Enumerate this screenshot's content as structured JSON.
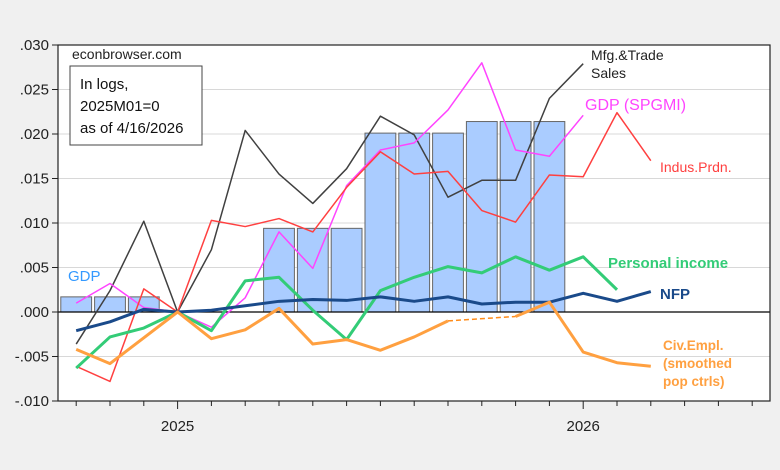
{
  "chart_data": {
    "type": "line",
    "title": "",
    "xlabel": "",
    "ylabel": "",
    "ylim": [
      -0.01,
      0.03
    ],
    "yticks": [
      ".030",
      ".025",
      ".020",
      ".015",
      ".010",
      ".005",
      ".000",
      "-.005",
      "-.010"
    ],
    "ytick_values": [
      0.03,
      0.025,
      0.02,
      0.015,
      0.01,
      0.005,
      0.0,
      -0.005,
      -0.01
    ],
    "grid": true,
    "x": [
      "2024M10",
      "2024M11",
      "2024M12",
      "2025M01",
      "2025M02",
      "2025M03",
      "2025M04",
      "2025M05",
      "2025M06",
      "2025M07",
      "2025M08",
      "2025M09",
      "2025M10",
      "2025M11",
      "2025M12",
      "2026M01",
      "2026M02",
      "2026M03"
    ],
    "xtick_labels": [
      {
        "label": "2025",
        "month": "2025M01"
      },
      {
        "label": "2026",
        "month": "2026M01"
      }
    ],
    "watermark": "econbrowser.com",
    "note": [
      "In logs,",
      "2025M01=0",
      "as of 4/16/2026"
    ],
    "bars": {
      "name": "GDP",
      "color": "#aaccff",
      "label_color": "#3399ff",
      "values": [
        0.0017,
        0.0017,
        0.0017,
        0,
        0,
        0,
        0.0094,
        0.0094,
        0.0094,
        0.0201,
        0.0201,
        0.0201,
        0.0214,
        0.0214,
        0.0214,
        null,
        null,
        null
      ]
    },
    "series": [
      {
        "name": "Mfg.&Trade Sales",
        "label_lines": [
          "Mfg.&Trade",
          "Sales"
        ],
        "color": "#404040",
        "width": 1.5,
        "values": [
          -0.0036,
          0.0024,
          0.0102,
          0,
          0.007,
          0.0204,
          0.0155,
          0.0122,
          0.0161,
          0.022,
          0.0199,
          0.0129,
          0.0148,
          0.0148,
          0.024,
          0.0279,
          null,
          null
        ]
      },
      {
        "name": "GDP (SPGMI)",
        "label_lines": [
          "GDP (SPGMI)"
        ],
        "color": "#ff44ff",
        "width": 1.5,
        "values": [
          0.001,
          0.0032,
          0.0005,
          0,
          -0.0017,
          0.0016,
          0.009,
          0.0049,
          0.0142,
          0.0182,
          0.019,
          0.0227,
          0.028,
          0.0182,
          0.0175,
          0.0221,
          null,
          null
        ]
      },
      {
        "name": "Indus.Prdn.",
        "label_lines": [
          "Indus.Prdn."
        ],
        "color": "#ff4040",
        "width": 1.5,
        "values": [
          -0.0061,
          -0.0078,
          0.0026,
          0,
          0.0103,
          0.0096,
          0.0105,
          0.009,
          0.014,
          0.018,
          0.0155,
          0.0158,
          0.0114,
          0.0101,
          0.0154,
          0.0152,
          0.0224,
          0.017
        ]
      },
      {
        "name": "Personal income",
        "label_lines": [
          "Personal income"
        ],
        "color": "#33cc77",
        "width": 3,
        "values": [
          -0.0063,
          -0.0028,
          -0.0018,
          0,
          -0.0021,
          0.0035,
          0.0039,
          0.0002,
          -0.0031,
          0.0024,
          0.0039,
          0.0051,
          0.0044,
          0.0062,
          0.0047,
          0.0062,
          0.0025,
          null
        ]
      },
      {
        "name": "NFP",
        "label_lines": [
          "NFP"
        ],
        "color": "#1a4a8a",
        "width": 3,
        "values": [
          -0.0021,
          -0.0011,
          0.0003,
          0,
          0.0002,
          0.0007,
          0.0012,
          0.0014,
          0.0013,
          0.0017,
          0.0012,
          0.0017,
          0.0009,
          0.0011,
          0.0011,
          0.0021,
          0.0012,
          0.0023
        ]
      },
      {
        "name": "Civ.Empl. (smoothed pop ctrls)",
        "label_lines": [
          "Civ.Empl.",
          "(smoothed",
          "pop ctrls)"
        ],
        "color": "#ffa040",
        "width": 3,
        "dashed_gap": true,
        "values": [
          -0.0042,
          -0.0058,
          -0.0029,
          0,
          -0.003,
          -0.002,
          0.0004,
          -0.0036,
          -0.0031,
          -0.0043,
          -0.0028,
          -0.001,
          null,
          -0.0005,
          0.0011,
          -0.0045,
          -0.0057,
          -0.0061
        ]
      }
    ]
  }
}
